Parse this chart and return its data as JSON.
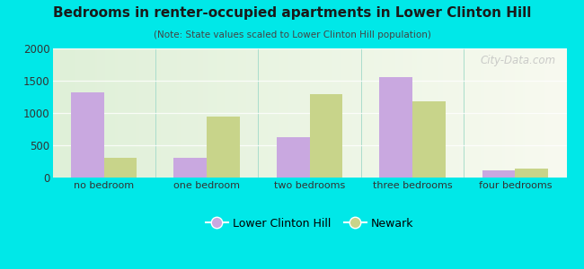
{
  "title": "Bedrooms in renter-occupied apartments in Lower Clinton Hill",
  "subtitle": "(Note: State values scaled to Lower Clinton Hill population)",
  "categories": [
    "no bedroom",
    "one bedroom",
    "two bedrooms",
    "three bedrooms",
    "four bedrooms"
  ],
  "lower_clinton_hill": [
    1320,
    305,
    625,
    1555,
    105
  ],
  "newark": [
    305,
    950,
    1295,
    1180,
    140
  ],
  "lch_color": "#c9a8e0",
  "newark_color": "#c8d48a",
  "bg_outer": "#00e8e8",
  "ylim": [
    0,
    2000
  ],
  "yticks": [
    0,
    500,
    1000,
    1500,
    2000
  ],
  "legend_lch": "Lower Clinton Hill",
  "legend_newark": "Newark",
  "bar_width": 0.32,
  "watermark": "City-Data.com",
  "title_color": "#1a1a1a",
  "subtitle_color": "#444444",
  "tick_color": "#333333"
}
